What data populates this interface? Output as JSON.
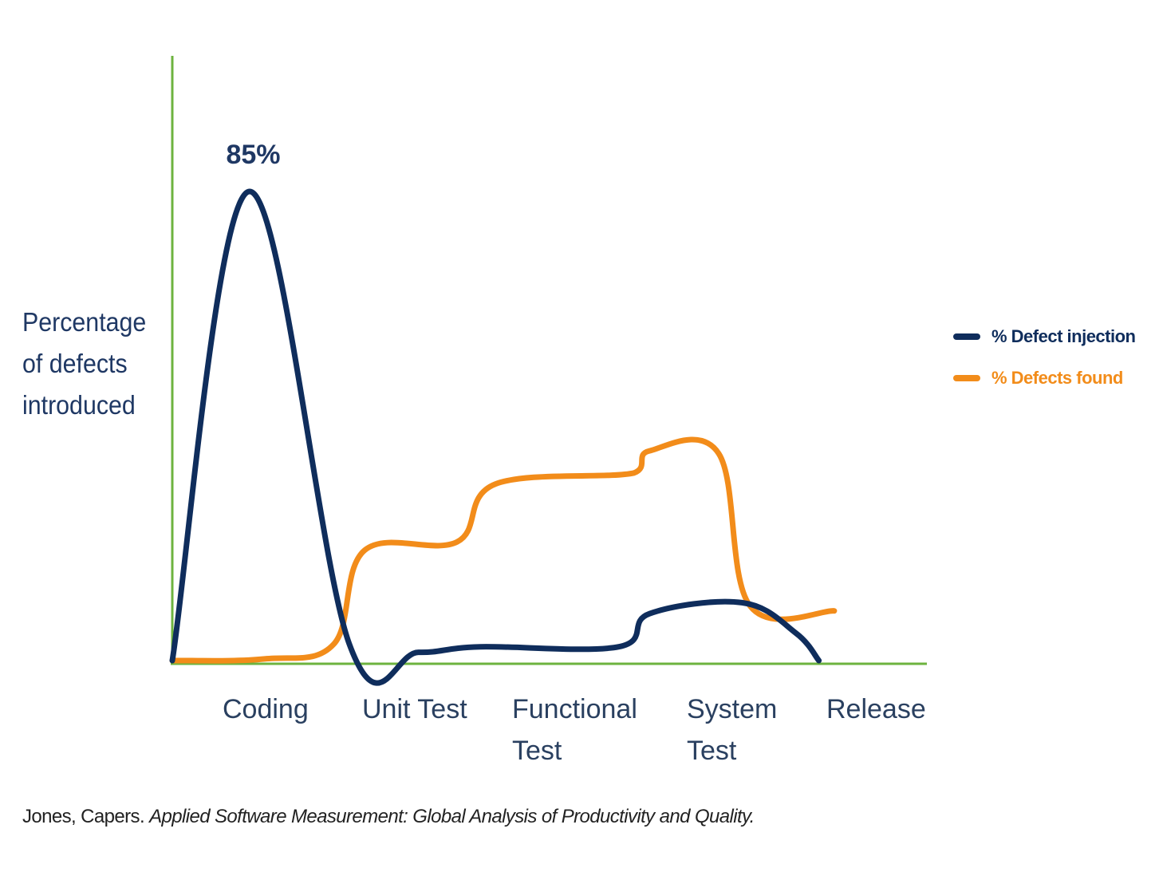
{
  "colors": {
    "axis": "#6db33f",
    "injection": "#0f2d5c",
    "found": "#f28c1a",
    "text_dark": "#1f3864",
    "tick_text": "#2a4060",
    "source_text": "#222222"
  },
  "chart_data": {
    "type": "line",
    "title": "",
    "xlabel": "",
    "ylabel": "Percentage of defects introduced",
    "ylabel_lines": [
      "Percentage",
      "of defects",
      "introduced"
    ],
    "categories": [
      "Coding",
      "Unit Test",
      "Functional Test",
      "System Test",
      "Release"
    ],
    "category_lines": [
      [
        "Coding"
      ],
      [
        "Unit Test"
      ],
      [
        "Functional",
        "Test"
      ],
      [
        "System",
        "Test"
      ],
      [
        "Release"
      ]
    ],
    "ylim": [
      0,
      100
    ],
    "grid": false,
    "legend_position": "right",
    "annotations": [
      {
        "text": "85%",
        "series": "% Defect injection",
        "category": "Coding"
      }
    ],
    "series": [
      {
        "name": "% Defect injection",
        "color": "#0f2d5c",
        "description_points": [
          [
            0.0,
            0
          ],
          [
            0.5,
            85
          ],
          [
            1.15,
            3
          ],
          [
            1.6,
            1.5
          ],
          [
            2.0,
            2.5
          ],
          [
            2.9,
            2.5
          ],
          [
            3.1,
            8.5
          ],
          [
            3.7,
            10.5
          ],
          [
            4.05,
            5
          ],
          [
            4.2,
            0
          ]
        ]
      },
      {
        "name": "% Defects found",
        "color": "#f28c1a",
        "description_points": [
          [
            0.0,
            0
          ],
          [
            0.6,
            0.3
          ],
          [
            1.05,
            3
          ],
          [
            1.25,
            20
          ],
          [
            1.85,
            21.5
          ],
          [
            2.1,
            32
          ],
          [
            3.0,
            34
          ],
          [
            3.1,
            38
          ],
          [
            3.55,
            37.5
          ],
          [
            3.75,
            10
          ],
          [
            4.3,
            9
          ]
        ]
      }
    ]
  },
  "legend": {
    "items": [
      {
        "label": "% Defect injection",
        "color": "#0f2d5c"
      },
      {
        "label": "% Defects found",
        "color": "#f28c1a"
      }
    ]
  },
  "source": {
    "author": "Jones, Capers.",
    "title": "Applied Software Measurement: Global Analysis of Productivity and Quality."
  }
}
